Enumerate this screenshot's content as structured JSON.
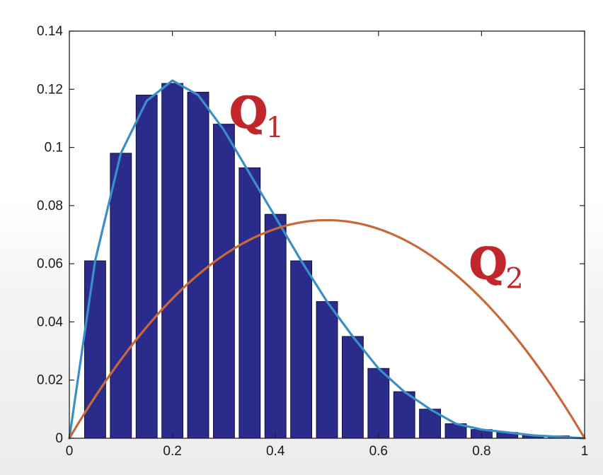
{
  "chart_data": {
    "type": "bar",
    "title": "",
    "xlabel": "",
    "ylabel": "",
    "xlim": [
      0,
      1
    ],
    "ylim": [
      0,
      0.14
    ],
    "x_ticks": [
      0,
      0.2,
      0.4,
      0.6,
      0.8,
      1
    ],
    "x_tick_labels": [
      "0",
      "0.2",
      "0.4",
      "0.6",
      "0.8",
      "1"
    ],
    "y_ticks": [
      0,
      0.02,
      0.04,
      0.06,
      0.08,
      0.1,
      0.12,
      0.14
    ],
    "y_tick_labels": [
      "0",
      "0.02",
      "0.04",
      "0.06",
      "0.08",
      "0.1",
      "0.12",
      "0.14"
    ],
    "grid": false,
    "bar_color": "#2b2b8c",
    "bar_edge_color": "#101040",
    "histogram": {
      "centers": [
        0.05,
        0.1,
        0.15,
        0.2,
        0.25,
        0.3,
        0.35,
        0.4,
        0.45,
        0.5,
        0.55,
        0.6,
        0.65,
        0.7,
        0.75,
        0.8,
        0.85,
        0.9,
        0.95
      ],
      "values": [
        0.061,
        0.098,
        0.118,
        0.122,
        0.119,
        0.108,
        0.093,
        0.077,
        0.061,
        0.047,
        0.035,
        0.024,
        0.016,
        0.01,
        0.005,
        0.003,
        0.002,
        0.001,
        0.0008
      ]
    },
    "series": [
      {
        "name": "Q1",
        "type": "line",
        "color": "#3a8fc8",
        "x": [
          0,
          0.05,
          0.1,
          0.15,
          0.2,
          0.25,
          0.3,
          0.35,
          0.4,
          0.45,
          0.5,
          0.55,
          0.6,
          0.65,
          0.7,
          0.75,
          0.8,
          0.85,
          0.9,
          0.95,
          1.0
        ],
        "y": [
          0,
          0.061,
          0.098,
          0.116,
          0.123,
          0.118,
          0.106,
          0.091,
          0.076,
          0.061,
          0.047,
          0.035,
          0.024,
          0.016,
          0.01,
          0.005,
          0.003,
          0.002,
          0.001,
          0.0005,
          0
        ]
      },
      {
        "name": "Q2",
        "type": "line",
        "color": "#c8693a",
        "x": [
          0,
          0.05,
          0.1,
          0.15,
          0.2,
          0.25,
          0.3,
          0.35,
          0.4,
          0.45,
          0.5,
          0.55,
          0.6,
          0.65,
          0.7,
          0.75,
          0.8,
          0.85,
          0.9,
          0.95,
          1.0
        ],
        "y": [
          0,
          0.01425,
          0.027,
          0.03825,
          0.048,
          0.05625,
          0.063,
          0.06825,
          0.072,
          0.07425,
          0.075,
          0.07425,
          0.072,
          0.06825,
          0.063,
          0.05625,
          0.048,
          0.03825,
          0.027,
          0.01425,
          0
        ]
      }
    ],
    "annotations": [
      {
        "letter": "Q",
        "subscript": "1",
        "color": "#c0262b",
        "x": 0.31,
        "y": 0.107
      },
      {
        "letter": "Q",
        "subscript": "2",
        "color": "#c0262b",
        "x": 0.775,
        "y": 0.055
      }
    ]
  }
}
